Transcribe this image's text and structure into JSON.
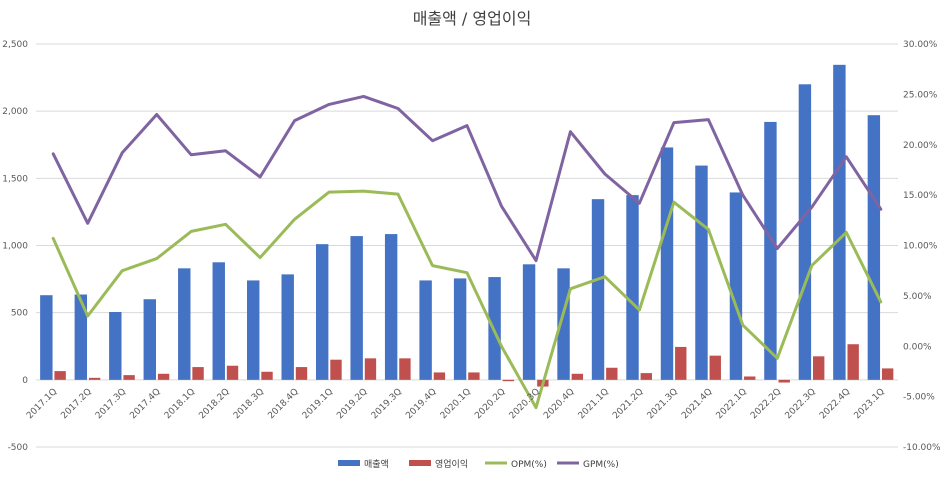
{
  "chart_data": {
    "type": "bar",
    "title": "매출액 / 영업이익",
    "categories": [
      "2017.1Q",
      "2017.2Q",
      "2017.3Q",
      "2017.4Q",
      "2018.1Q",
      "2018.2Q",
      "2018.3Q",
      "2018.4Q",
      "2019.1Q",
      "2019.2Q",
      "2019.3Q",
      "2019.4Q",
      "2020.1Q",
      "2020.2Q",
      "2020.3Q",
      "2020.4Q",
      "2021.1Q",
      "2021.2Q",
      "2021.3Q",
      "2021.4Q",
      "2022.1Q",
      "2022.2Q",
      "2022.3Q",
      "2022.4Q",
      "2023.1Q"
    ],
    "y_left": {
      "ylim": [
        -500,
        2500
      ],
      "ticks": [
        -500,
        0,
        500,
        1000,
        1500,
        2000,
        2500
      ],
      "tick_labels": [
        "-500",
        "0",
        "500",
        "1,000",
        "1,500",
        "2,000",
        "2,500"
      ]
    },
    "y_right": {
      "ylim": [
        -10,
        30
      ],
      "ticks": [
        -10,
        -5,
        0,
        5,
        10,
        15,
        20,
        25,
        30
      ],
      "tick_labels": [
        "-10.00%",
        "-5.00%",
        "0.00%",
        "5.00%",
        "10.00%",
        "15.00%",
        "20.00%",
        "25.00%",
        "30.00%"
      ]
    },
    "grid": true,
    "legend_position": "bottom",
    "series": [
      {
        "name": "매출액",
        "kind": "bar",
        "axis": "left",
        "color": "#4472c4",
        "values": [
          630,
          635,
          505,
          600,
          830,
          875,
          740,
          785,
          1010,
          1070,
          1085,
          740,
          755,
          765,
          860,
          830,
          1345,
          1375,
          1730,
          1595,
          1395,
          1920,
          2200,
          2345,
          1970
        ]
      },
      {
        "name": "영업이익",
        "kind": "bar",
        "axis": "left",
        "color": "#c0504d",
        "values": [
          65,
          15,
          35,
          45,
          95,
          105,
          60,
          95,
          150,
          160,
          160,
          55,
          55,
          -10,
          -50,
          45,
          90,
          50,
          245,
          180,
          25,
          -20,
          175,
          265,
          85
        ]
      },
      {
        "name": "OPM(%)",
        "kind": "line",
        "axis": "right",
        "color": "#9bbb59",
        "values": [
          10.7,
          3.0,
          7.5,
          8.7,
          11.4,
          12.1,
          8.8,
          12.6,
          15.3,
          15.4,
          15.1,
          8.0,
          7.3,
          0.0,
          -6.1,
          5.7,
          6.9,
          3.6,
          14.3,
          11.6,
          2.1,
          -1.2,
          8.0,
          11.3,
          4.4
        ]
      },
      {
        "name": "GPM(%)",
        "kind": "line",
        "axis": "right",
        "color": "#8064a2",
        "values": [
          19.1,
          12.2,
          19.2,
          23.0,
          19.0,
          19.4,
          16.8,
          22.4,
          24.0,
          24.8,
          23.6,
          20.4,
          21.9,
          13.9,
          8.5,
          21.3,
          17.1,
          14.2,
          22.2,
          22.5,
          15.0,
          9.7,
          13.8,
          18.8,
          13.6
        ]
      }
    ]
  }
}
